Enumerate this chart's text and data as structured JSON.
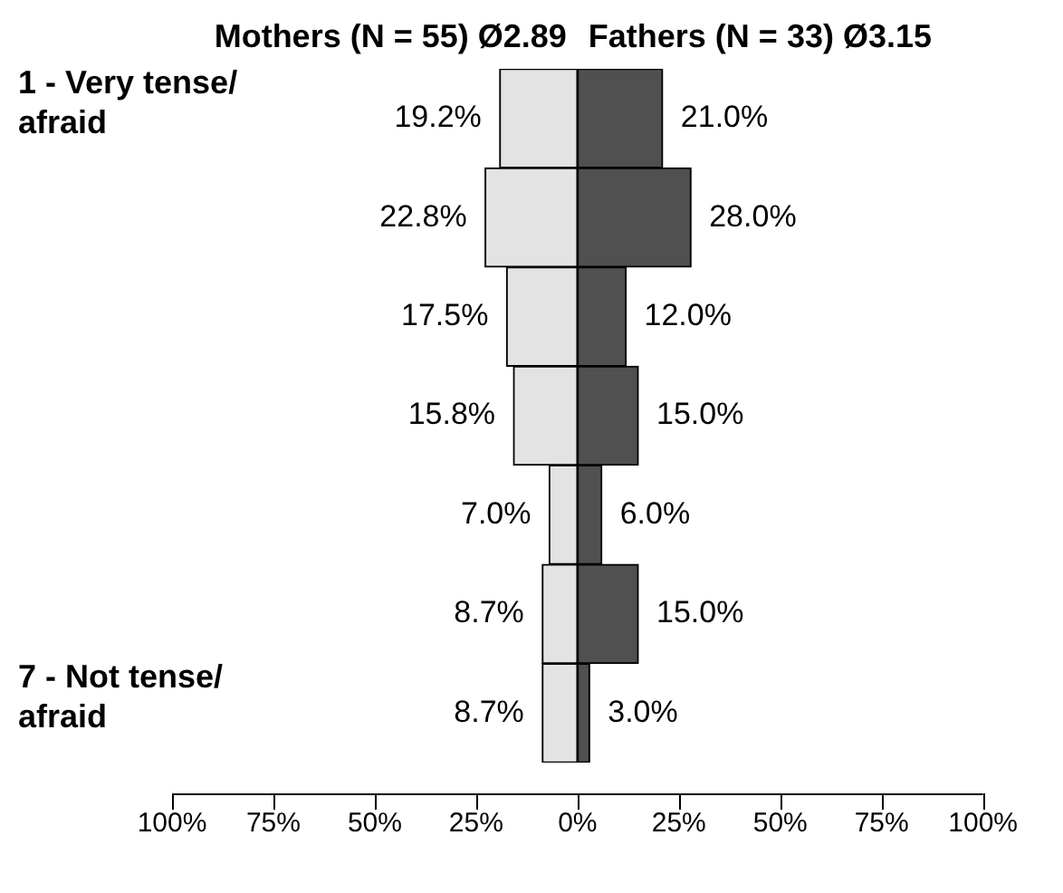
{
  "chart_data": {
    "type": "bar",
    "orientation": "horizontal",
    "categories": [
      "1 - Very tense/ afraid",
      null,
      null,
      null,
      null,
      null,
      "7 - Not tense/ afraid"
    ],
    "series": [
      {
        "name": "Mothers (N = 55) Ø2.89",
        "color": "#e3e3e3",
        "base": [
          -19.2,
          -22.8,
          -17.5,
          -15.8,
          -7.0,
          -8.7,
          -8.7
        ],
        "values": [
          19.2,
          22.8,
          17.5,
          15.8,
          7.0,
          8.7,
          8.7
        ],
        "value_labels": [
          "19.2%",
          "22.8%",
          "17.5%",
          "15.8%",
          "7.0%",
          "8.7%",
          "8.7%"
        ]
      },
      {
        "name": "Fathers (N = 33) Ø3.15",
        "color": "#505050",
        "base": [
          0,
          0,
          0,
          0,
          0,
          0,
          0
        ],
        "values": [
          21.0,
          28.0,
          12.0,
          15.0,
          6.0,
          15.0,
          3.0
        ],
        "value_labels": [
          "21.0%",
          "28.0%",
          "12.0%",
          "15.0%",
          "6.0%",
          "15.0%",
          "3.0%"
        ]
      }
    ],
    "xlim": [
      -100,
      100
    ],
    "xticks": [
      {
        "value": -100,
        "label": "100%"
      },
      {
        "value": -75,
        "label": "75%"
      },
      {
        "value": -50,
        "label": "50%"
      },
      {
        "value": -25,
        "label": "25%"
      },
      {
        "value": 0,
        "label": "0%"
      },
      {
        "value": 25,
        "label": "25%"
      },
      {
        "value": 50,
        "label": "50%"
      },
      {
        "value": 75,
        "label": "75%"
      },
      {
        "value": 100,
        "label": "100%"
      }
    ],
    "grid": false,
    "legend": false
  }
}
